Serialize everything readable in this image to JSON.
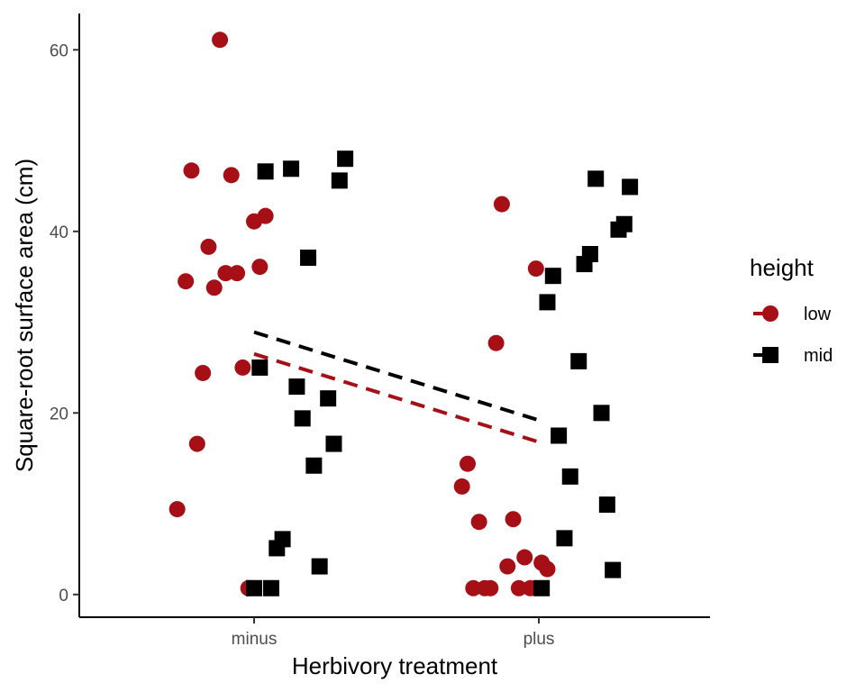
{
  "chart_data": {
    "type": "scatter",
    "title": "",
    "xlabel": "Herbivory treatment",
    "ylabel": "Square-root surface area (cm)",
    "categories": [
      "minus",
      "plus"
    ],
    "y_ticks": [
      "0",
      "20",
      "40",
      "60"
    ],
    "ylim": [
      -2.5,
      64
    ],
    "grid": false,
    "legend": {
      "title": "height",
      "position": "right",
      "entries": [
        "low",
        "mid"
      ]
    },
    "series": [
      {
        "name": "low",
        "color": "#a50f15",
        "marker": "circle",
        "points": [
          {
            "x": 0.73,
            "y": 9.4
          },
          {
            "x": 0.76,
            "y": 34.5
          },
          {
            "x": 0.78,
            "y": 46.7
          },
          {
            "x": 0.8,
            "y": 16.6
          },
          {
            "x": 0.82,
            "y": 24.4
          },
          {
            "x": 0.84,
            "y": 38.3
          },
          {
            "x": 0.86,
            "y": 33.8
          },
          {
            "x": 0.88,
            "y": 61.1
          },
          {
            "x": 0.9,
            "y": 35.4
          },
          {
            "x": 0.92,
            "y": 46.2
          },
          {
            "x": 0.94,
            "y": 35.4
          },
          {
            "x": 0.96,
            "y": 25.0
          },
          {
            "x": 0.98,
            "y": 0.7
          },
          {
            "x": 1.0,
            "y": 41.1
          },
          {
            "x": 1.02,
            "y": 36.1
          },
          {
            "x": 1.04,
            "y": 41.7
          },
          {
            "x": 1.73,
            "y": 11.9
          },
          {
            "x": 1.75,
            "y": 14.4
          },
          {
            "x": 1.77,
            "y": 0.7
          },
          {
            "x": 1.79,
            "y": 8.0
          },
          {
            "x": 1.81,
            "y": 0.7
          },
          {
            "x": 1.83,
            "y": 0.7
          },
          {
            "x": 1.85,
            "y": 27.7
          },
          {
            "x": 1.87,
            "y": 43.0
          },
          {
            "x": 1.89,
            "y": 3.1
          },
          {
            "x": 1.91,
            "y": 8.3
          },
          {
            "x": 1.93,
            "y": 0.7
          },
          {
            "x": 1.95,
            "y": 4.1
          },
          {
            "x": 1.97,
            "y": 0.7
          },
          {
            "x": 1.99,
            "y": 35.9
          },
          {
            "x": 2.01,
            "y": 3.5
          },
          {
            "x": 2.03,
            "y": 2.8
          }
        ],
        "trend": {
          "x": [
            1.0,
            2.0
          ],
          "y": [
            26.5,
            16.8
          ]
        }
      },
      {
        "name": "mid",
        "color": "#000000",
        "marker": "square",
        "points": [
          {
            "x": 1.0,
            "y": 0.7
          },
          {
            "x": 1.02,
            "y": 25.0
          },
          {
            "x": 1.04,
            "y": 46.6
          },
          {
            "x": 1.06,
            "y": 0.7
          },
          {
            "x": 1.08,
            "y": 5.1
          },
          {
            "x": 1.1,
            "y": 6.1
          },
          {
            "x": 1.13,
            "y": 46.9
          },
          {
            "x": 1.15,
            "y": 22.9
          },
          {
            "x": 1.17,
            "y": 19.4
          },
          {
            "x": 1.19,
            "y": 37.1
          },
          {
            "x": 1.21,
            "y": 14.2
          },
          {
            "x": 1.23,
            "y": 3.1
          },
          {
            "x": 1.26,
            "y": 21.6
          },
          {
            "x": 1.28,
            "y": 16.6
          },
          {
            "x": 1.3,
            "y": 45.6
          },
          {
            "x": 1.32,
            "y": 48.0
          },
          {
            "x": 2.01,
            "y": 0.7
          },
          {
            "x": 2.03,
            "y": 32.2
          },
          {
            "x": 2.05,
            "y": 35.1
          },
          {
            "x": 2.07,
            "y": 17.5
          },
          {
            "x": 2.09,
            "y": 6.2
          },
          {
            "x": 2.11,
            "y": 13.0
          },
          {
            "x": 2.14,
            "y": 25.7
          },
          {
            "x": 2.16,
            "y": 36.4
          },
          {
            "x": 2.18,
            "y": 37.5
          },
          {
            "x": 2.2,
            "y": 45.8
          },
          {
            "x": 2.22,
            "y": 20.0
          },
          {
            "x": 2.24,
            "y": 9.9
          },
          {
            "x": 2.26,
            "y": 2.7
          },
          {
            "x": 2.28,
            "y": 40.2
          },
          {
            "x": 2.3,
            "y": 40.8
          },
          {
            "x": 2.32,
            "y": 44.9
          }
        ],
        "trend": {
          "x": [
            1.0,
            2.0
          ],
          "y": [
            28.9,
            19.2
          ]
        }
      }
    ]
  }
}
